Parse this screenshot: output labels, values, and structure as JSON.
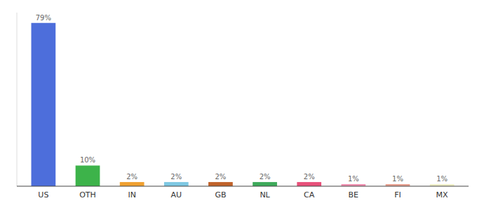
{
  "chart_data": {
    "type": "bar",
    "categories": [
      "US",
      "OTH",
      "IN",
      "AU",
      "GB",
      "NL",
      "CA",
      "BE",
      "FI",
      "MX"
    ],
    "values": [
      79,
      10,
      2,
      2,
      2,
      2,
      2,
      1,
      1,
      1
    ],
    "value_labels": [
      "79%",
      "10%",
      "2%",
      "2%",
      "2%",
      "2%",
      "2%",
      "1%",
      "1%",
      "1%"
    ],
    "colors": [
      "#4d6edb",
      "#3db34a",
      "#f0a030",
      "#7ec8e3",
      "#c0622a",
      "#3daa5a",
      "#e8507a",
      "#f090b0",
      "#e8a090",
      "#f0f0c8"
    ],
    "ylim": [
      0,
      84
    ],
    "data_labels": true,
    "tick_labels": "x",
    "grid": false
  }
}
